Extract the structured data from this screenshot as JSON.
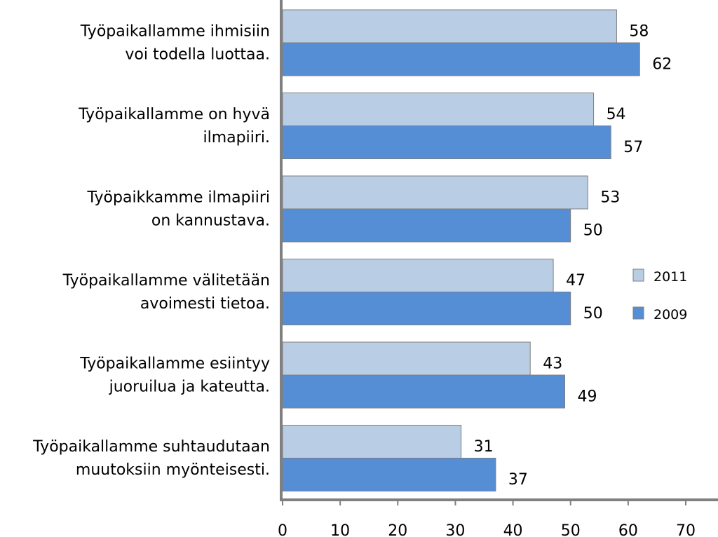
{
  "chart_data": {
    "type": "bar",
    "orientation": "horizontal",
    "title": "",
    "xlabel": "",
    "ylabel": "",
    "categories": [
      [
        "Työpaikallamme ihmisiin",
        "voi todella luottaa."
      ],
      [
        "Työpaikallamme on hyvä",
        "ilmapiiri."
      ],
      [
        "Työpaikkamme ilmapiiri",
        "on kannustava."
      ],
      [
        "Työpaikallamme välitetään",
        "avoimesti  tietoa."
      ],
      [
        "Työpaikallamme esiintyy",
        "juoruilua ja  kateutta."
      ],
      [
        "Työpaikallamme suhtaudutaan",
        "muutoksiin myönteisesti."
      ]
    ],
    "series": [
      {
        "name": "2011",
        "color": "#b9cde5",
        "values": [
          58,
          54,
          53,
          47,
          43,
          31
        ]
      },
      {
        "name": "2009",
        "color": "#558ed5",
        "values": [
          62,
          57,
          50,
          50,
          49,
          37
        ]
      }
    ],
    "xlim": [
      0,
      70
    ],
    "xticks": [
      0,
      10,
      20,
      30,
      40,
      50,
      60,
      70
    ],
    "grid": false,
    "data_labels": true,
    "legend_position": "right",
    "axis_color": "#808080",
    "bar_outline_color": "#7f7f7f"
  }
}
